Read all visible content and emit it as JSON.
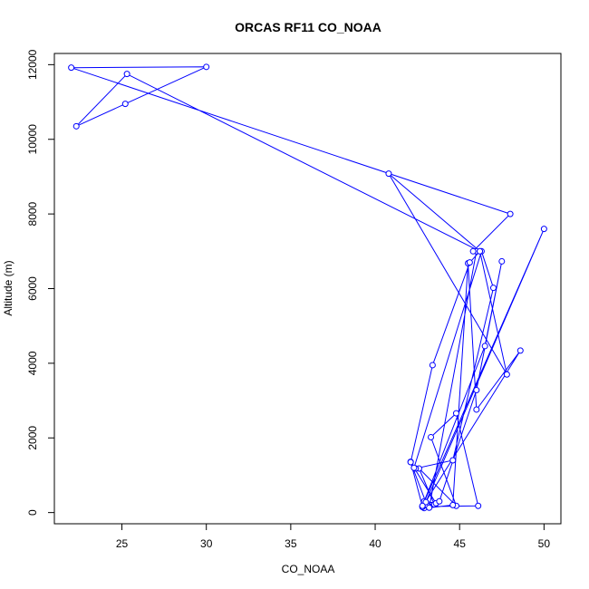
{
  "chart_data": {
    "type": "line",
    "title": "ORCAS RF11 CO_NOAA",
    "xlabel": "CO_NOAA",
    "ylabel": "Altitude (m)",
    "xlim": [
      21,
      51
    ],
    "ylim": [
      -300,
      12300
    ],
    "xticks": [
      25,
      30,
      35,
      40,
      45,
      50
    ],
    "yticks": [
      0,
      2000,
      4000,
      6000,
      8000,
      10000,
      12000
    ],
    "xtick_labels": [
      "25",
      "30",
      "35",
      "40",
      "45",
      "50"
    ],
    "ytick_labels": [
      "0",
      "2000",
      "4000",
      "6000",
      "8000",
      "10000",
      "12000"
    ],
    "marker": "open-circle",
    "color": "#0000ff",
    "series": [
      {
        "x": [
          42.9,
          43.1,
          43.5,
          42.6,
          44.8,
          43.3,
          44.8,
          46.1,
          42.8,
          42.1,
          42.4,
          44.6,
          47.0,
          46.3,
          42.3,
          43.6,
          42.9,
          46.5,
          47.5,
          46.0,
          43.8,
          42.8,
          48.6,
          46.0,
          45.5,
          44.6,
          43.2,
          46.0,
          45.8,
          48.0,
          22.0,
          30.0,
          25.2,
          22.3,
          25.3,
          46.2,
          40.8,
          47.8,
          46.2,
          45.6,
          43.4,
          42.1,
          43.0,
          50.0,
          42.8
        ],
        "y": [
          120,
          180,
          220,
          1180,
          180,
          2020,
          2660,
          180,
          160,
          1360,
          1180,
          1400,
          6020,
          7000,
          1200,
          250,
          300,
          4460,
          6730,
          3280,
          300,
          150,
          4340,
          2760,
          6680,
          200,
          130,
          7000,
          7000,
          8000,
          11920,
          11940,
          10950,
          10350,
          11750,
          7000,
          9080,
          3700,
          7000,
          6700,
          3950,
          1350,
          280,
          7600,
          180
        ]
      }
    ]
  }
}
